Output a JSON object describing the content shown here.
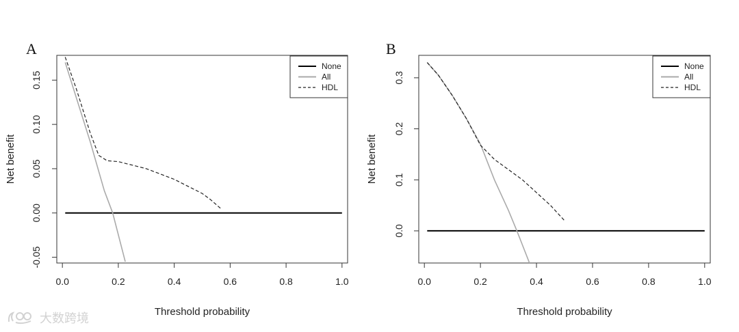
{
  "chart_data": [
    {
      "type": "line",
      "panel_label": "A",
      "xlabel": "Threshold probability",
      "ylabel": "Net benefit",
      "xlim": [
        -0.02,
        1.02
      ],
      "ylim": [
        -0.0565,
        0.178
      ],
      "xticks": [
        0.0,
        0.2,
        0.4,
        0.6,
        0.8,
        1.0
      ],
      "xtick_labels": [
        "0.0",
        "0.2",
        "0.4",
        "0.6",
        "0.8",
        "1.0"
      ],
      "yticks": [
        -0.05,
        0.0,
        0.05,
        0.1,
        0.15
      ],
      "ytick_labels": [
        "-0.05",
        "0.00",
        "0.05",
        "0.10",
        "0.15"
      ],
      "grid": false,
      "legend_position": "top-right",
      "series": [
        {
          "name": "None",
          "color": "#000000",
          "style": "solid",
          "x": [
            0.01,
            1.0
          ],
          "y": [
            0.0,
            0.0
          ]
        },
        {
          "name": "All",
          "color": "#aaaaaa",
          "style": "solid",
          "x": [
            0.01,
            0.05,
            0.1,
            0.15,
            0.18,
            0.225
          ],
          "y": [
            0.17,
            0.13,
            0.08,
            0.025,
            0.0,
            -0.055
          ]
        },
        {
          "name": "HDL",
          "color": "#222222",
          "style": "dashed",
          "x": [
            0.01,
            0.05,
            0.1,
            0.13,
            0.16,
            0.2,
            0.3,
            0.4,
            0.5,
            0.53,
            0.57
          ],
          "y": [
            0.176,
            0.14,
            0.09,
            0.065,
            0.059,
            0.058,
            0.05,
            0.038,
            0.022,
            0.015,
            0.004
          ]
        }
      ]
    },
    {
      "type": "line",
      "panel_label": "B",
      "xlabel": "Threshold probability",
      "ylabel": "Net benefit",
      "xlim": [
        -0.02,
        1.02
      ],
      "ylim": [
        -0.063,
        0.344
      ],
      "xticks": [
        0.0,
        0.2,
        0.4,
        0.6,
        0.8,
        1.0
      ],
      "xtick_labels": [
        "0.0",
        "0.2",
        "0.4",
        "0.6",
        "0.8",
        "1.0"
      ],
      "yticks": [
        0.0,
        0.1,
        0.2,
        0.3
      ],
      "ytick_labels": [
        "0.0",
        "0.1",
        "0.2",
        "0.3"
      ],
      "grid": false,
      "legend_position": "top-right",
      "series": [
        {
          "name": "None",
          "color": "#000000",
          "style": "solid",
          "x": [
            0.01,
            1.0
          ],
          "y": [
            0.0,
            0.0
          ]
        },
        {
          "name": "All",
          "color": "#aaaaaa",
          "style": "solid",
          "x": [
            0.01,
            0.05,
            0.1,
            0.15,
            0.2,
            0.25,
            0.3,
            0.33,
            0.375
          ],
          "y": [
            0.33,
            0.305,
            0.265,
            0.22,
            0.17,
            0.1,
            0.04,
            0.0,
            -0.063
          ]
        },
        {
          "name": "HDL",
          "color": "#222222",
          "style": "dashed",
          "x": [
            0.01,
            0.05,
            0.1,
            0.15,
            0.2,
            0.25,
            0.3,
            0.35,
            0.4,
            0.45,
            0.5
          ],
          "y": [
            0.33,
            0.305,
            0.265,
            0.22,
            0.168,
            0.14,
            0.12,
            0.1,
            0.075,
            0.05,
            0.02
          ]
        }
      ]
    }
  ],
  "watermark": {
    "text": "大数跨境",
    "icon": "brand-logo-icon"
  }
}
